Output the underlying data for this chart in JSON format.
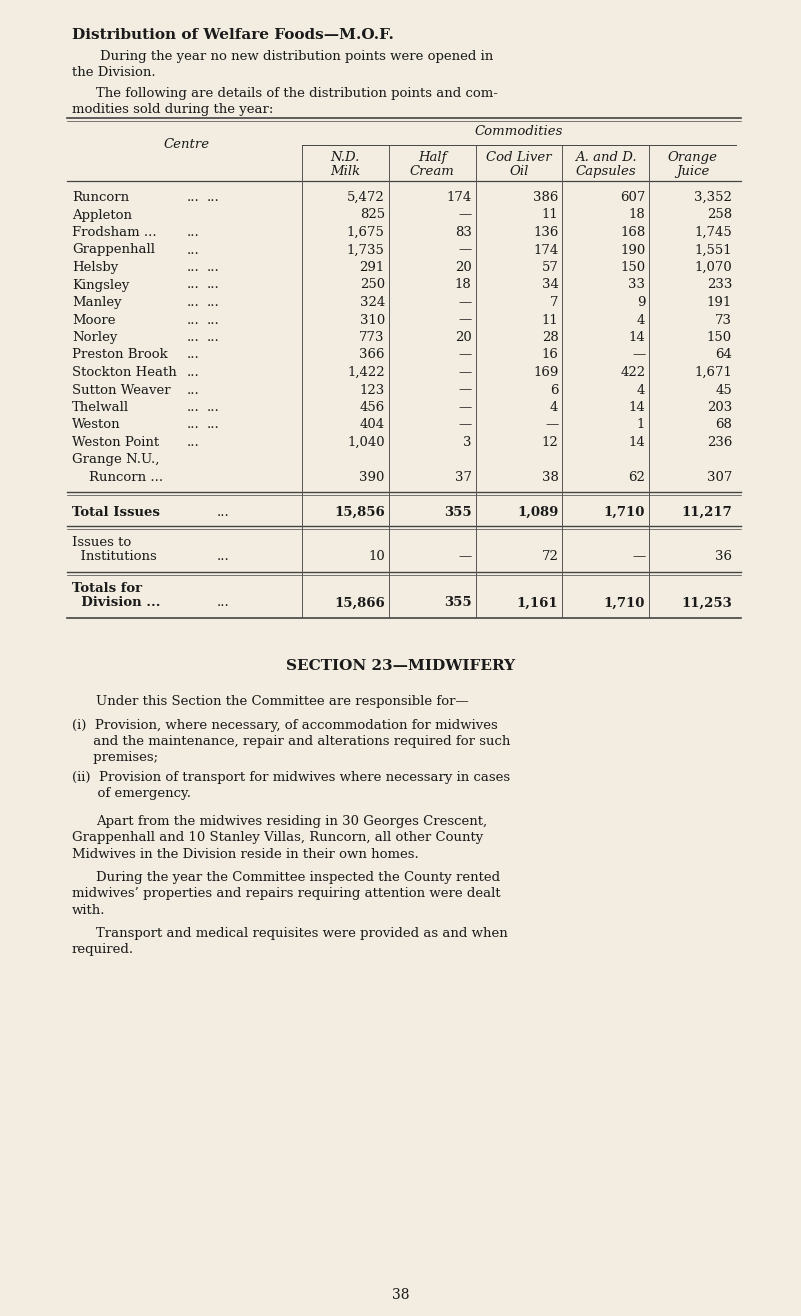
{
  "bg_color": "#f2ede0",
  "text_color": "#1a1a1a",
  "page_width": 8.01,
  "page_height": 13.16,
  "dpi": 100,
  "title": "Distribution of Welfare Foods—M.O.F.",
  "para1_line1": "During the year no new distribution points were opened in",
  "para1_line2": "the Division.",
  "para2_line1": "The following are details of the distribution points and com-",
  "para2_line2": "modities sold during the year:",
  "col_header_italic": "Commodities",
  "centre_label": "Centre",
  "table_col_headers": [
    [
      "N.D.",
      "Milk"
    ],
    [
      "Half",
      "Cream"
    ],
    [
      "Cod Liver",
      "Oil"
    ],
    [
      "A. and D.",
      "Capsules"
    ],
    [
      "Orange",
      "Juice"
    ]
  ],
  "centres": [
    [
      "Runcorn",
      "...",
      "...",
      "5,472",
      "174",
      "386",
      "607",
      "3,352"
    ],
    [
      "Appleton",
      "",
      "",
      "825",
      "—",
      "11",
      "18",
      "258"
    ],
    [
      "Frodsham ...",
      "...",
      "",
      "1,675",
      "83",
      "136",
      "168",
      "1,745"
    ],
    [
      "Grappenhall",
      "...",
      "",
      "1,735",
      "—",
      "174",
      "190",
      "1,551"
    ],
    [
      "Helsby",
      "...",
      "...",
      "291",
      "20",
      "57",
      "150",
      "1,070"
    ],
    [
      "Kingsley",
      "...",
      "...",
      "250",
      "18",
      "34",
      "33",
      "233"
    ],
    [
      "Manley",
      "...",
      "...",
      "324",
      "—",
      "7",
      "9",
      "191"
    ],
    [
      "Moore",
      "...",
      "...",
      "310",
      "—",
      "11",
      "4",
      "73"
    ],
    [
      "Norley",
      "...",
      "...",
      "773",
      "20",
      "28",
      "14",
      "150"
    ],
    [
      "Preston Brook",
      "...",
      "",
      "366",
      "—",
      "16",
      "—",
      "64"
    ],
    [
      "Stockton Heath",
      "...",
      "",
      "1,422",
      "—",
      "169",
      "422",
      "1,671"
    ],
    [
      "Sutton Weaver",
      "...",
      "",
      "123",
      "—",
      "6",
      "4",
      "45"
    ],
    [
      "Thelwall",
      "...",
      "...",
      "456",
      "—",
      "4",
      "14",
      "203"
    ],
    [
      "Weston",
      "...",
      "...",
      "404",
      "—",
      "—",
      "1",
      "68"
    ],
    [
      "Weston Point",
      "...",
      "",
      "1,040",
      "3",
      "12",
      "14",
      "236"
    ],
    [
      "Grange N.U.,",
      "",
      "",
      "",
      "",
      "",
      "",
      ""
    ],
    [
      "    Runcorn ...",
      "",
      "",
      "390",
      "37",
      "38",
      "62",
      "307"
    ]
  ],
  "total_issues_label": "Total Issues",
  "total_issues_dots": "...",
  "total_issues_vals": [
    "15,856",
    "355",
    "1,089",
    "1,710",
    "11,217"
  ],
  "issues_inst_label1": "Issues to",
  "issues_inst_label2": "  Institutions",
  "issues_inst_dots": "...",
  "issues_inst_vals": [
    "10",
    "—",
    "72",
    "—",
    "36"
  ],
  "totals_div_label1": "Totals for",
  "totals_div_label2": "  Division ...",
  "totals_div_dots": "...",
  "totals_div_vals": [
    "15,866",
    "355",
    "1,161",
    "1,710",
    "11,253"
  ],
  "section_title": "SECTION 23—MIDWIFERY",
  "sec_para0": "Under this Section the Committee are responsible for—",
  "sec_i_1": "(i)  Provision, where necessary, of accommodation for midwives",
  "sec_i_2": "     and the maintenance, repair and alterations required for such",
  "sec_i_3": "     premises;",
  "sec_ii_1": "(ii)  Provision of transport for midwives where necessary in cases",
  "sec_ii_2": "      of emergency.",
  "sec_p1_1": "Apart from the midwives residing in 30 Georges Crescent,",
  "sec_p1_2": "Grappenhall and 10 Stanley Villas, Runcorn, all other County",
  "sec_p1_3": "Midwives in the Division reside in their own homes.",
  "sec_p2_1": "During the year the Committee inspected the County rented",
  "sec_p2_2": "midwives’ properties and repairs requiring attention were dealt",
  "sec_p2_3": "with.",
  "sec_p3_1": "Transport and medical requisites were provided as and when",
  "sec_p3_2": "required.",
  "page_number": "38"
}
